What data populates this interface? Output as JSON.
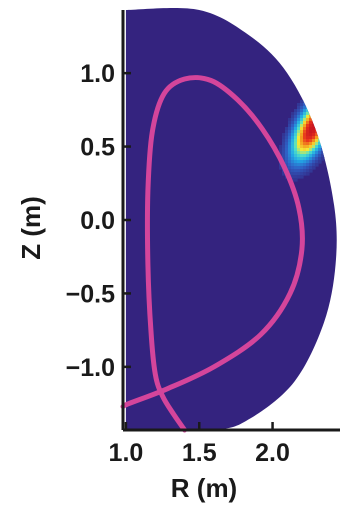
{
  "chart_data": {
    "type": "heatmap",
    "xlabel": "R (m)",
    "ylabel": "Z (m)",
    "xlim": [
      0.98,
      2.46
    ],
    "ylim": [
      -1.43,
      1.43
    ],
    "x_ticks": [
      {
        "value": 1.0,
        "label": "1.0"
      },
      {
        "value": 1.5,
        "label": "1.5"
      },
      {
        "value": 2.0,
        "label": "2.0"
      }
    ],
    "y_ticks": [
      {
        "value": 1.0,
        "label": "1.0"
      },
      {
        "value": 0.5,
        "label": "0.5"
      },
      {
        "value": 0.0,
        "label": "0.0"
      },
      {
        "value": -0.5,
        "label": "−0.5"
      },
      {
        "value": -1.0,
        "label": "−1.0"
      }
    ],
    "colors": {
      "background_field": "#34237f",
      "separatrix": "#d4459b",
      "axes": "#1a1a1a",
      "colormap": [
        "#34237f",
        "#2f5fc4",
        "#22a8e6",
        "#4fe0c8",
        "#f4e838",
        "#f39a1e",
        "#e8301c",
        "#c8161f"
      ]
    },
    "domain_boundary": [
      [
        1.0,
        1.43
      ],
      [
        1.5,
        1.43
      ],
      [
        1.85,
        1.25
      ],
      [
        2.1,
        1.0
      ],
      [
        2.3,
        0.6
      ],
      [
        2.42,
        0.1
      ],
      [
        2.43,
        -0.3
      ],
      [
        2.35,
        -0.7
      ],
      [
        2.15,
        -1.1
      ],
      [
        1.85,
        -1.35
      ],
      [
        1.6,
        -1.43
      ],
      [
        1.0,
        -1.43
      ]
    ],
    "hot_spot": {
      "r": 2.27,
      "z": 0.62,
      "radial_width": 0.12,
      "poloidal_width": 0.15
    },
    "separatrix_path": [
      [
        1.4,
        -1.43
      ],
      [
        1.33,
        -1.33
      ],
      [
        1.25,
        -1.2
      ],
      [
        1.2,
        -1.05
      ],
      [
        1.17,
        -0.75
      ],
      [
        1.15,
        -0.3
      ],
      [
        1.15,
        0.2
      ],
      [
        1.18,
        0.6
      ],
      [
        1.26,
        0.86
      ],
      [
        1.4,
        0.96
      ],
      [
        1.58,
        0.95
      ],
      [
        1.76,
        0.82
      ],
      [
        1.93,
        0.62
      ],
      [
        2.08,
        0.36
      ],
      [
        2.18,
        0.08
      ],
      [
        2.2,
        -0.2
      ],
      [
        2.12,
        -0.5
      ],
      [
        1.92,
        -0.78
      ],
      [
        1.6,
        -1.0
      ],
      [
        1.28,
        -1.15
      ],
      [
        1.02,
        -1.25
      ],
      [
        0.98,
        -1.27
      ]
    ]
  }
}
